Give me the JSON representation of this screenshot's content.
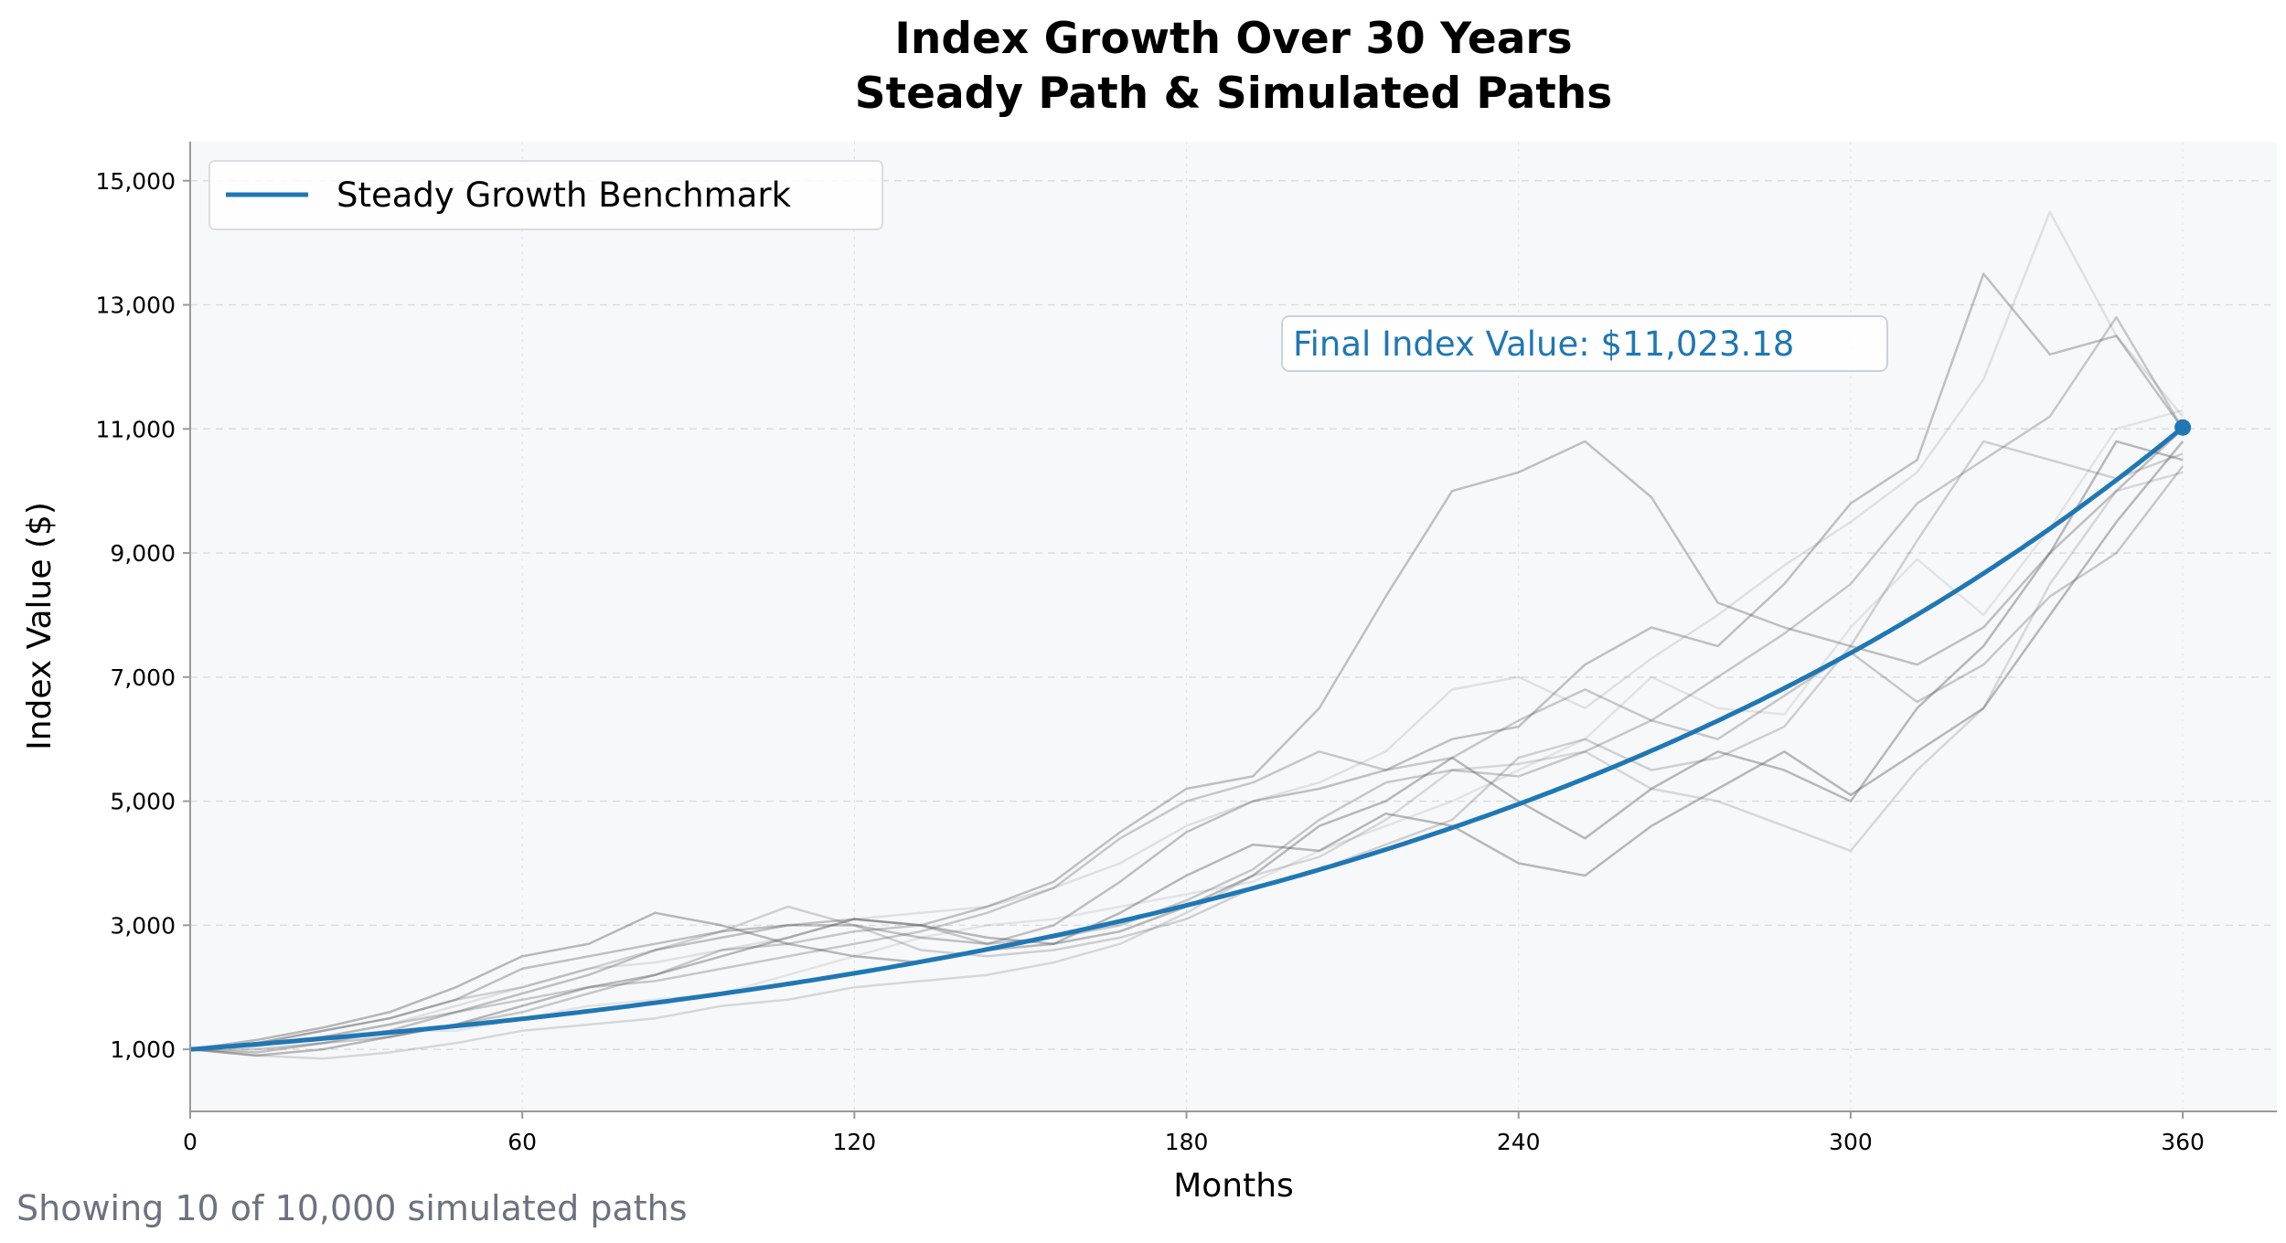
{
  "chart_data": {
    "type": "line",
    "title": "Index Growth Over 30 Years",
    "subtitle": "Steady Path & Simulated Paths",
    "xlabel": "Months",
    "ylabel": "Index Value ($)",
    "xlim": [
      0,
      377
    ],
    "ylim": [
      0,
      15630
    ],
    "x_ticks": [
      0,
      60,
      120,
      180,
      240,
      300,
      360
    ],
    "x_tick_labels": [
      "0",
      "60",
      "120",
      "180",
      "240",
      "300",
      "360"
    ],
    "y_ticks": [
      1000,
      3000,
      5000,
      7000,
      9000,
      11000,
      13000,
      15000
    ],
    "y_tick_labels": [
      "1,000",
      "3,000",
      "5,000",
      "7,000",
      "9,000",
      "11,000",
      "13,000",
      "15,000"
    ],
    "grid": true,
    "legend": {
      "placement": "top-left",
      "entries": [
        "Steady Growth Benchmark"
      ]
    },
    "benchmark": {
      "name": "Steady Growth Benchmark",
      "start_value": 1000,
      "end_value": 11023.18,
      "months": 360,
      "color": "#1f77b4"
    },
    "annotation": "Final Index Value: $11,023.18",
    "footer": "Showing 10 of 10,000 simulated paths",
    "simulated_paths": {
      "color": "#555555",
      "x": [
        0,
        12,
        24,
        36,
        48,
        60,
        72,
        84,
        96,
        108,
        120,
        132,
        144,
        156,
        168,
        180,
        192,
        204,
        216,
        228,
        240,
        252,
        264,
        276,
        288,
        300,
        312,
        324,
        336,
        348,
        360
      ],
      "series": [
        {
          "opacity": 0.35,
          "values": [
            1000,
            1100,
            1300,
            1500,
            1800,
            2300,
            2500,
            2700,
            2900,
            3000,
            3100,
            3000,
            3300,
            3700,
            4500,
            5200,
            5400,
            6500,
            8300,
            10000,
            10300,
            10800,
            9900,
            8200,
            7800,
            7500,
            7200,
            7800,
            9000,
            10000,
            11000
          ]
        },
        {
          "opacity": 0.35,
          "values": [
            1000,
            950,
            1100,
            1300,
            1600,
            1900,
            2200,
            2600,
            2800,
            3000,
            3000,
            2800,
            2700,
            3000,
            3700,
            4500,
            5000,
            5200,
            5500,
            6000,
            6200,
            7200,
            7800,
            7500,
            8500,
            9800,
            10500,
            13500,
            12200,
            12500,
            11000
          ]
        },
        {
          "opacity": 0.15,
          "values": [
            1000,
            1100,
            1200,
            1400,
            1700,
            2000,
            2300,
            2400,
            2600,
            2800,
            3100,
            3200,
            3300,
            3600,
            4000,
            4600,
            5000,
            5300,
            5800,
            6800,
            7000,
            6500,
            7300,
            8000,
            8800,
            9500,
            10300,
            11800,
            14500,
            12500,
            11200
          ]
        },
        {
          "opacity": 0.4,
          "values": [
            1000,
            900,
            1000,
            1200,
            1400,
            1700,
            2000,
            2200,
            2500,
            2800,
            3100,
            3000,
            2800,
            2700,
            2900,
            3300,
            3800,
            4600,
            5000,
            5700,
            5000,
            4400,
            5200,
            5800,
            5500,
            5000,
            6500,
            7500,
            9000,
            10800,
            10500
          ]
        },
        {
          "opacity": 0.2,
          "values": [
            1000,
            900,
            850,
            950,
            1100,
            1300,
            1400,
            1500,
            1700,
            1800,
            2000,
            2100,
            2200,
            2400,
            2700,
            3200,
            3800,
            4100,
            4700,
            5500,
            5600,
            5800,
            5200,
            5000,
            4600,
            4200,
            5500,
            6500,
            8500,
            10000,
            10300
          ]
        },
        {
          "opacity": 0.4,
          "values": [
            1000,
            1150,
            1350,
            1600,
            2000,
            2500,
            2700,
            3200,
            3000,
            2700,
            2500,
            2400,
            2600,
            2700,
            3200,
            3800,
            4300,
            4200,
            4800,
            4600,
            4000,
            3800,
            4600,
            5200,
            5800,
            5100,
            5800,
            6500,
            8000,
            9500,
            10800
          ]
        },
        {
          "opacity": 0.3,
          "values": [
            1000,
            1050,
            1200,
            1400,
            1600,
            1800,
            2000,
            2100,
            2300,
            2500,
            2700,
            2900,
            3200,
            3600,
            4400,
            5000,
            5300,
            5800,
            5500,
            5700,
            6300,
            6800,
            6300,
            7000,
            7700,
            8500,
            9800,
            10500,
            11200,
            12800,
            11000
          ]
        },
        {
          "opacity": 0.12,
          "values": [
            1000,
            1100,
            1200,
            1300,
            1300,
            1500,
            1700,
            1800,
            1900,
            2200,
            2500,
            2800,
            3000,
            3100,
            3300,
            3500,
            3700,
            4200,
            4600,
            5000,
            5500,
            6000,
            7000,
            6500,
            6400,
            7800,
            8900,
            8000,
            9400,
            11000,
            11300
          ]
        },
        {
          "opacity": 0.3,
          "values": [
            1000,
            1000,
            1100,
            1200,
            1400,
            1600,
            1900,
            2200,
            2600,
            2700,
            2900,
            3000,
            2700,
            2800,
            3000,
            3400,
            3900,
            4700,
            5300,
            5500,
            5400,
            5800,
            6300,
            6000,
            6700,
            7400,
            6600,
            7200,
            8300,
            9000,
            10400
          ]
        },
        {
          "opacity": 0.25,
          "values": [
            1000,
            1100,
            1300,
            1500,
            1800,
            2000,
            2300,
            2600,
            2900,
            3300,
            3000,
            2600,
            2500,
            2600,
            2800,
            3100,
            3600,
            3900,
            4300,
            4700,
            5700,
            6000,
            5500,
            5700,
            6200,
            7500,
            9200,
            10800,
            10500,
            10200,
            10600
          ]
        }
      ]
    },
    "colors": {
      "plot_background": "#f7f8fa",
      "footer": "#6b7280",
      "grid": "#dddddd",
      "spine": "#999999"
    }
  }
}
